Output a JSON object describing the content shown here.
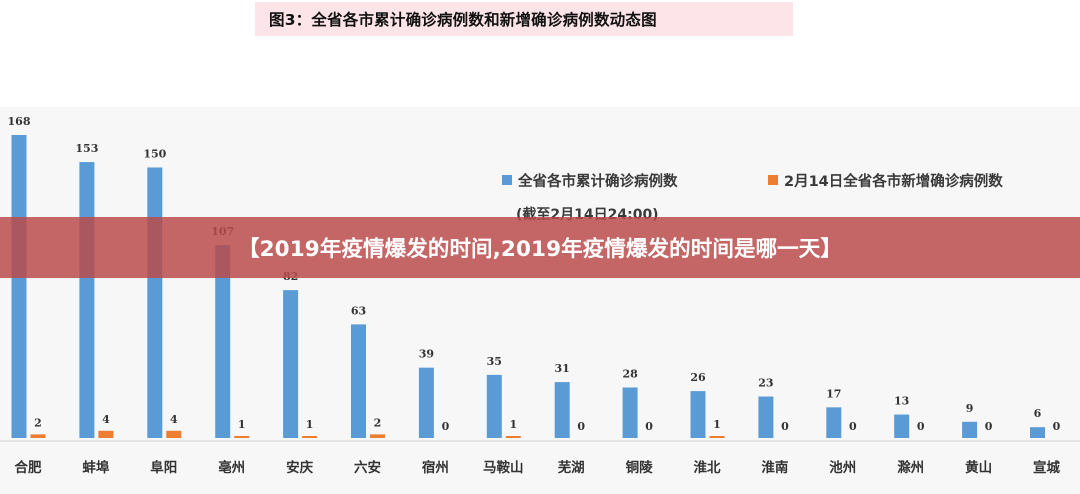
{
  "figure_title": "图3：全省各市累计确诊病例数和新增确诊病例数动态图",
  "banner_title": "【2019年疫情爆发的时间,2019年疫情爆发的时间是哪一天】",
  "colors": {
    "cumulative": "#5b9bd5",
    "new": "#ed7d31",
    "banner": "#bb4a4a",
    "title_bg": "#fce4e8"
  },
  "chart_data": {
    "type": "bar",
    "title": "",
    "xlabel": "",
    "ylabel": "",
    "ylim": [
      0,
      168
    ],
    "grid": false,
    "legend_position": "top-right",
    "legend_note": "(截至2月14日24:00)",
    "categories": [
      "合肥",
      "蚌埠",
      "阜阳",
      "亳州",
      "安庆",
      "六安",
      "宿州",
      "马鞍山",
      "芜湖",
      "铜陵",
      "淮北",
      "淮南",
      "池州",
      "滁州",
      "黄山",
      "宣城"
    ],
    "series": [
      {
        "name": "全省各市累计确诊病例数",
        "values": [
          168,
          153,
          150,
          107,
          82,
          63,
          39,
          35,
          31,
          28,
          26,
          23,
          17,
          13,
          9,
          6
        ]
      },
      {
        "name": "2月14日全省各市新增确诊病例数",
        "values": [
          2,
          4,
          4,
          1,
          1,
          2,
          0,
          1,
          0,
          0,
          1,
          0,
          0,
          0,
          0,
          0
        ]
      }
    ]
  }
}
